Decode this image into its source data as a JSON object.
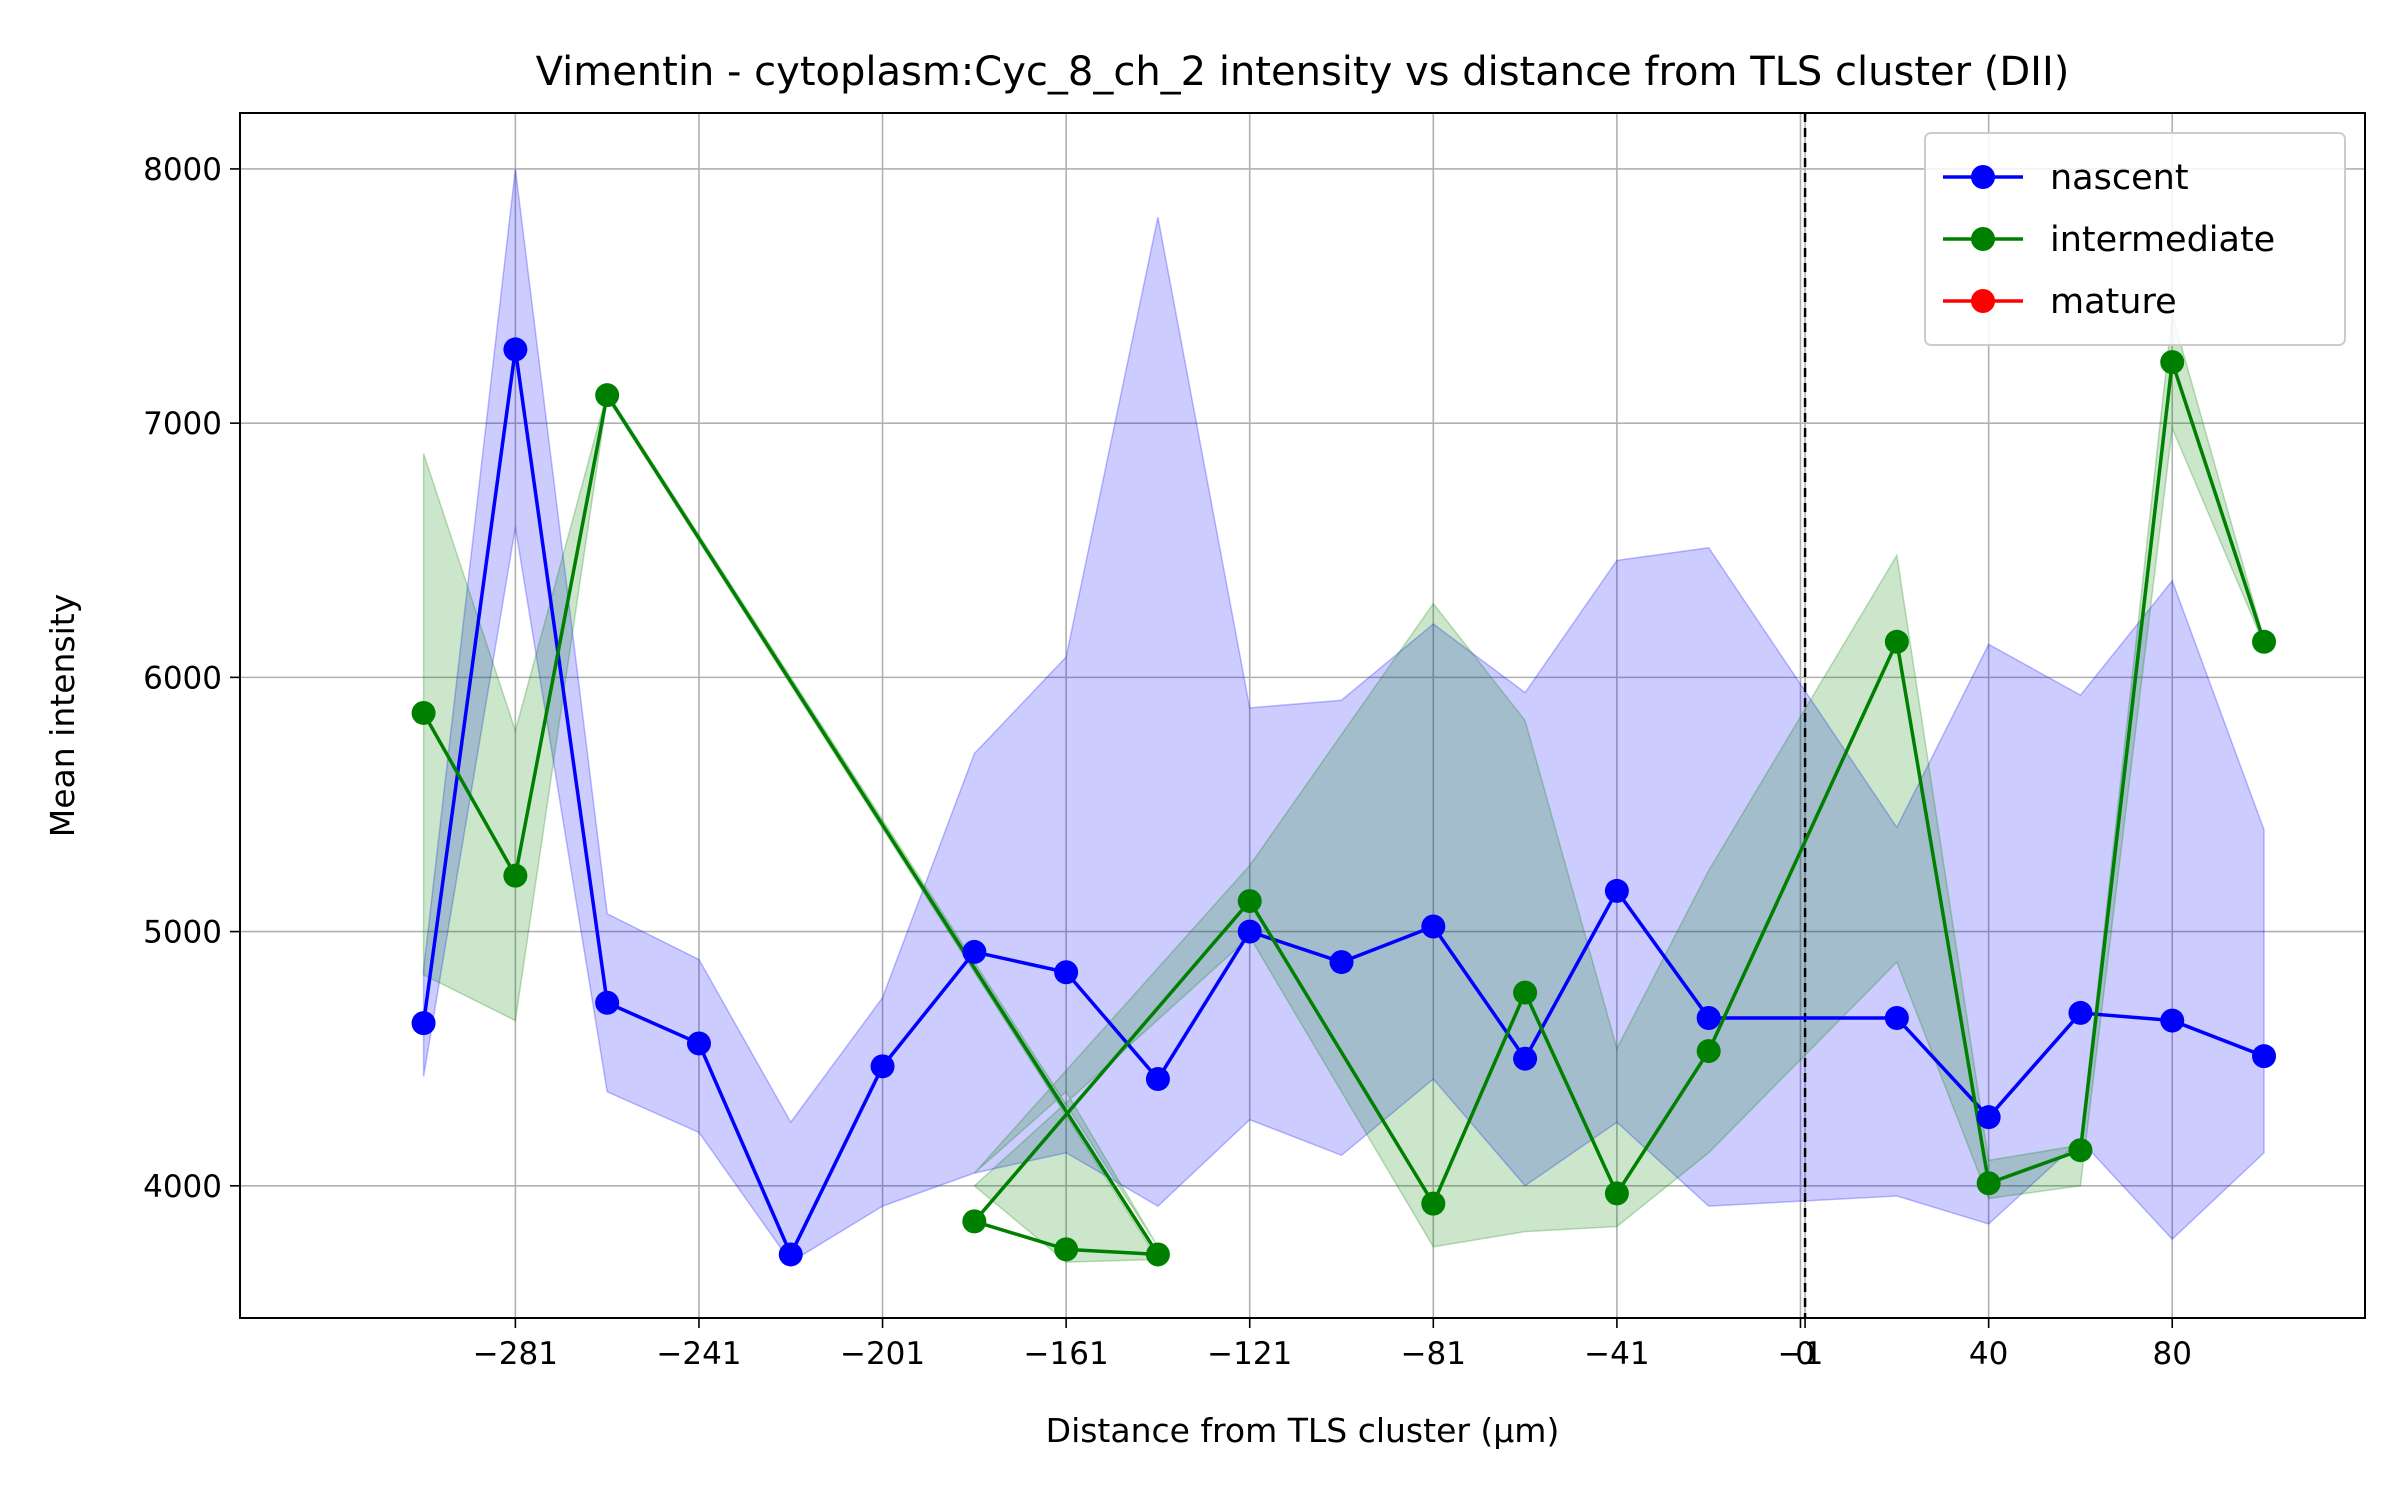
{
  "chart_data": {
    "type": "line",
    "title": "Vimentin - cytoplasm:Cyc_8_ch_2 intensity vs distance from TLS cluster (DII)",
    "xlabel": "Distance from TLS cluster (μm)",
    "ylabel": "Mean intensity",
    "xlim": [
      -341,
      122
    ],
    "ylim": [
      3480,
      8220
    ],
    "x_ticks": [
      {
        "value": -281,
        "label": "−281"
      },
      {
        "value": -241,
        "label": "−241"
      },
      {
        "value": -201,
        "label": "−201"
      },
      {
        "value": -161,
        "label": "−161"
      },
      {
        "value": -121,
        "label": "−121"
      },
      {
        "value": -81,
        "label": "−81"
      },
      {
        "value": -41,
        "label": "−41"
      },
      {
        "value": -1,
        "label": "−1"
      },
      {
        "value": 0,
        "label": "0"
      },
      {
        "value": 40,
        "label": "40"
      },
      {
        "value": 80,
        "label": "80"
      }
    ],
    "y_ticks": [
      {
        "value": 4000,
        "label": "4000"
      },
      {
        "value": 5000,
        "label": "5000"
      },
      {
        "value": 6000,
        "label": "6000"
      },
      {
        "value": 7000,
        "label": "7000"
      },
      {
        "value": 8000,
        "label": "8000"
      }
    ],
    "grid": true,
    "reference_line_x": 0,
    "legend_position": "top-right",
    "series": [
      {
        "name": "nascent",
        "color": "#0000ff",
        "band_color": "#0000ff",
        "x": [
          -301,
          -281,
          -261,
          -241,
          -221,
          -201,
          -181,
          -161,
          -141,
          -121,
          -101,
          -81,
          -61,
          -41,
          -21,
          20,
          40,
          60,
          80,
          100
        ],
        "y": [
          4640,
          7290,
          4720,
          4560,
          3730,
          4470,
          4920,
          4840,
          4420,
          5000,
          4880,
          5020,
          4500,
          5160,
          4660,
          4660,
          4270,
          4680,
          4650,
          4510
        ],
        "lower": [
          4430,
          6590,
          4370,
          4210,
          3700,
          3920,
          4050,
          4130,
          3920,
          4260,
          4120,
          4420,
          4000,
          4250,
          3920,
          3960,
          3850,
          4180,
          3790,
          4130
        ],
        "upper": [
          4850,
          8000,
          5070,
          4890,
          4250,
          4740,
          5700,
          6080,
          7810,
          5880,
          5910,
          6210,
          5940,
          6460,
          6510,
          5410,
          6130,
          5930,
          6380,
          5400
        ]
      },
      {
        "name": "intermediate",
        "color": "#008000",
        "band_color": "#008000",
        "x": [
          -301,
          -281,
          -261,
          -141,
          -161,
          -181,
          -121,
          -81,
          -61,
          -41,
          -21,
          20,
          40,
          60,
          80,
          100
        ],
        "y": [
          5860,
          5220,
          7110,
          3730,
          3750,
          3860,
          5120,
          3930,
          4760,
          3970,
          4530,
          6140,
          4010,
          4140,
          7240,
          6140
        ],
        "lower": [
          4830,
          4650,
          7100,
          3710,
          3700,
          4000,
          4980,
          3760,
          3820,
          3840,
          4130,
          4880,
          3950,
          4000,
          6980,
          6130
        ],
        "upper": [
          6880,
          5790,
          7120,
          3760,
          4370,
          4050,
          5260,
          6290,
          5830,
          4540,
          5240,
          6480,
          4100,
          4160,
          7430,
          6150
        ]
      },
      {
        "name": "mature",
        "color": "#ff0000",
        "band_color": "#ff0000",
        "x": [],
        "y": [],
        "lower": [],
        "upper": []
      }
    ]
  }
}
